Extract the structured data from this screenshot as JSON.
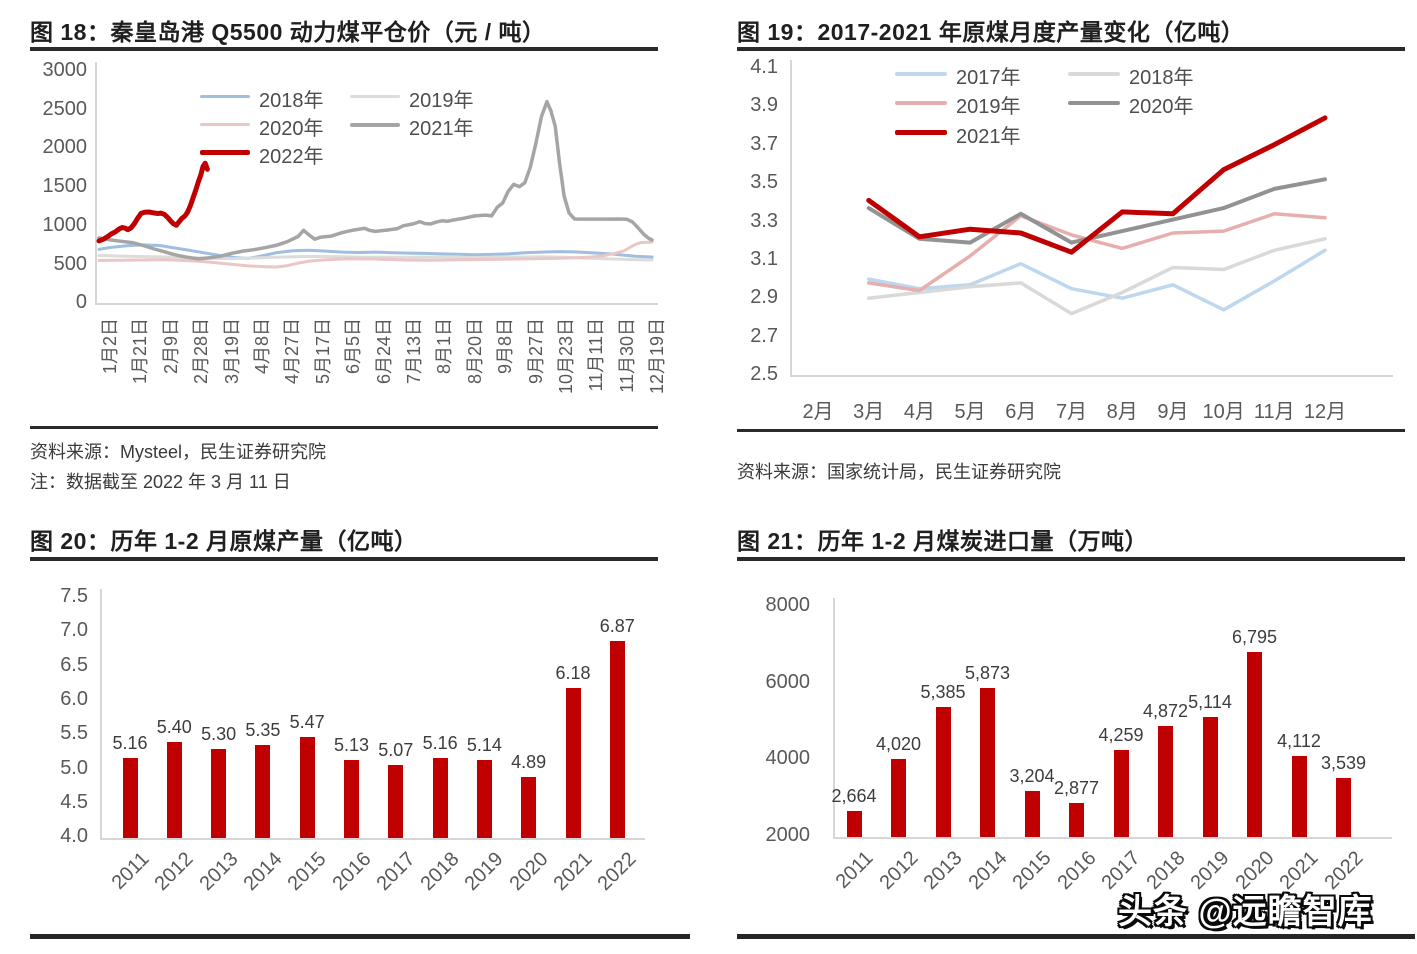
{
  "page": {
    "watermark": "头条 @远瞻智库",
    "background": "#ffffff"
  },
  "colors": {
    "bar_red": "#C00000",
    "title_text": "#1F1F1F",
    "tick_text": "#595959",
    "rule": "#2B2B2B",
    "axis_line": "#D6D6D6"
  },
  "chart_data": [
    {
      "id": "fig18",
      "type": "line",
      "title": "图 18：秦皇岛港 Q5500 动力煤平仓价（元 / 吨）",
      "source": "资料来源：Mysteel，民生证券研究院",
      "note": "注：数据截至 2022 年 3 月 11 日",
      "ylim": [
        0,
        3000
      ],
      "yticks": [
        "3000",
        "2500",
        "2000",
        "1500",
        "1000",
        "500",
        "0"
      ],
      "xticklabels": [
        "1月2日",
        "1月21日",
        "2月9日",
        "2月28日",
        "3月19日",
        "4月8日",
        "4月27日",
        "5月17日",
        "6月5日",
        "6月24日",
        "7月13日",
        "8月1日",
        "8月20日",
        "9月8日",
        "9月27日",
        "10月23日",
        "11月11日",
        "11月30日",
        "12月19日"
      ],
      "legend_rows": [
        [
          "2018年",
          "2019年"
        ],
        [
          "2020年",
          "2021年"
        ],
        [
          "2022年"
        ]
      ],
      "series": [
        {
          "name": "2018年",
          "color": "#9FBEE0",
          "width": 3,
          "points": [
            [
              0,
              690
            ],
            [
              2,
              714
            ],
            [
              5,
              736
            ],
            [
              8,
              748
            ],
            [
              11,
              740
            ],
            [
              13,
              716
            ],
            [
              16,
              682
            ],
            [
              19,
              646
            ],
            [
              22,
              610
            ],
            [
              25,
              582
            ],
            [
              27,
              574
            ],
            [
              29,
              600
            ],
            [
              32,
              646
            ],
            [
              35,
              672
            ],
            [
              38,
              680
            ],
            [
              41,
              668
            ],
            [
              44,
              656
            ],
            [
              47,
              650
            ],
            [
              50,
              656
            ],
            [
              53,
              648
            ],
            [
              56,
              642
            ],
            [
              59,
              638
            ],
            [
              62,
              632
            ],
            [
              65,
              628
            ],
            [
              68,
              622
            ],
            [
              71,
              626
            ],
            [
              74,
              632
            ],
            [
              77,
              646
            ],
            [
              80,
              656
            ],
            [
              83,
              662
            ],
            [
              86,
              658
            ],
            [
              89,
              648
            ],
            [
              91,
              638
            ],
            [
              93,
              630
            ],
            [
              95,
              616
            ],
            [
              97,
              602
            ],
            [
              100,
              592
            ]
          ]
        },
        {
          "name": "2019年",
          "color": "#DCDCDC",
          "width": 3,
          "points": [
            [
              0,
              612
            ],
            [
              4,
              604
            ],
            [
              8,
              598
            ],
            [
              12,
              592
            ],
            [
              16,
              584
            ],
            [
              20,
              577
            ],
            [
              24,
              572
            ],
            [
              28,
              580
            ],
            [
              32,
              590
            ],
            [
              36,
              597
            ],
            [
              40,
              600
            ],
            [
              44,
              596
            ],
            [
              48,
              590
            ],
            [
              52,
              588
            ],
            [
              56,
              590
            ],
            [
              60,
              592
            ],
            [
              64,
              588
            ],
            [
              68,
              585
            ],
            [
              72,
              588
            ],
            [
              76,
              592
            ],
            [
              80,
              596
            ],
            [
              84,
              590
            ],
            [
              88,
              578
            ],
            [
              92,
              568
            ],
            [
              96,
              560
            ],
            [
              100,
              554
            ]
          ]
        },
        {
          "name": "2020年",
          "color": "#EAC6C5",
          "width": 3,
          "points": [
            [
              0,
              548
            ],
            [
              4,
              551
            ],
            [
              8,
              554
            ],
            [
              12,
              557
            ],
            [
              15,
              549
            ],
            [
              18,
              538
            ],
            [
              21,
              520
            ],
            [
              24,
              497
            ],
            [
              27,
              478
            ],
            [
              30,
              468
            ],
            [
              32,
              464
            ],
            [
              34,
              480
            ],
            [
              36,
              512
            ],
            [
              38,
              540
            ],
            [
              41,
              556
            ],
            [
              44,
              566
            ],
            [
              47,
              571
            ],
            [
              50,
              566
            ],
            [
              53,
              559
            ],
            [
              56,
              553
            ],
            [
              59,
              550
            ],
            [
              62,
              553
            ],
            [
              65,
              556
            ],
            [
              68,
              559
            ],
            [
              71,
              562
            ],
            [
              74,
              565
            ],
            [
              77,
              568
            ],
            [
              80,
              572
            ],
            [
              83,
              576
            ],
            [
              85,
              580
            ],
            [
              87,
              585
            ],
            [
              89,
              592
            ],
            [
              91,
              606
            ],
            [
              93,
              634
            ],
            [
              95,
              674
            ],
            [
              96,
              714
            ],
            [
              97,
              754
            ],
            [
              98,
              778
            ],
            [
              100,
              786
            ]
          ]
        },
        {
          "name": "2021年",
          "color": "#A5A5A5",
          "width": 3.5,
          "points": [
            [
              0,
              838
            ],
            [
              2,
              812
            ],
            [
              4,
              795
            ],
            [
              6,
              778
            ],
            [
              8,
              740
            ],
            [
              10,
              695
            ],
            [
              12,
              655
            ],
            [
              14,
              615
            ],
            [
              16,
              588
            ],
            [
              18,
              568
            ],
            [
              20,
              582
            ],
            [
              22,
              602
            ],
            [
              24,
              640
            ],
            [
              26,
              668
            ],
            [
              28,
              686
            ],
            [
              30,
              712
            ],
            [
              32,
              742
            ],
            [
              34,
              788
            ],
            [
              36,
              858
            ],
            [
              37,
              936
            ],
            [
              38,
              876
            ],
            [
              39,
              822
            ],
            [
              40,
              846
            ],
            [
              42,
              862
            ],
            [
              44,
              906
            ],
            [
              46,
              938
            ],
            [
              48,
              962
            ],
            [
              49,
              934
            ],
            [
              50,
              922
            ],
            [
              52,
              938
            ],
            [
              54,
              958
            ],
            [
              55,
              994
            ],
            [
              57,
              1022
            ],
            [
              58,
              1048
            ],
            [
              59,
              1022
            ],
            [
              60,
              1018
            ],
            [
              61,
              1042
            ],
            [
              62,
              1058
            ],
            [
              63,
              1052
            ],
            [
              64,
              1068
            ],
            [
              66,
              1092
            ],
            [
              68,
              1122
            ],
            [
              70,
              1132
            ],
            [
              71,
              1122
            ],
            [
              72,
              1232
            ],
            [
              73,
              1288
            ],
            [
              74,
              1438
            ],
            [
              75,
              1528
            ],
            [
              76,
              1498
            ],
            [
              77,
              1548
            ],
            [
              78,
              1748
            ],
            [
              79,
              2058
            ],
            [
              80,
              2398
            ],
            [
              81,
              2592
            ],
            [
              81.7,
              2478
            ],
            [
              82.5,
              2278
            ],
            [
              83.3,
              1798
            ],
            [
              84.1,
              1378
            ],
            [
              85,
              1158
            ],
            [
              86,
              1082
            ],
            [
              88,
              1080
            ],
            [
              90,
              1080
            ],
            [
              92,
              1080
            ],
            [
              94,
              1082
            ],
            [
              95.5,
              1078
            ],
            [
              96.5,
              1042
            ],
            [
              97.5,
              966
            ],
            [
              98.5,
              886
            ],
            [
              99.3,
              838
            ],
            [
              100,
              812
            ]
          ]
        },
        {
          "name": "2022年",
          "color": "#C00000",
          "width": 5,
          "points": [
            [
              0,
              800
            ],
            [
              0.8,
              822
            ],
            [
              1.5,
              852
            ],
            [
              2.2,
              888
            ],
            [
              3,
              918
            ],
            [
              3.6,
              952
            ],
            [
              4.2,
              972
            ],
            [
              4.8,
              962
            ],
            [
              5.2,
              944
            ],
            [
              5.8,
              968
            ],
            [
              6.4,
              1022
            ],
            [
              7,
              1092
            ],
            [
              7.6,
              1152
            ],
            [
              8.2,
              1168
            ],
            [
              9,
              1172
            ],
            [
              9.8,
              1162
            ],
            [
              10.6,
              1152
            ],
            [
              11.2,
              1158
            ],
            [
              11.8,
              1142
            ],
            [
              12.4,
              1102
            ],
            [
              13,
              1052
            ],
            [
              13.5,
              1018
            ],
            [
              14,
              1002
            ],
            [
              14.5,
              1048
            ],
            [
              15,
              1092
            ],
            [
              15.5,
              1118
            ],
            [
              16,
              1168
            ],
            [
              16.5,
              1248
            ],
            [
              17,
              1352
            ],
            [
              17.5,
              1456
            ],
            [
              18,
              1566
            ],
            [
              18.4,
              1648
            ],
            [
              18.8,
              1758
            ],
            [
              19.2,
              1800
            ],
            [
              19.6,
              1722
            ]
          ]
        }
      ]
    },
    {
      "id": "fig19",
      "type": "line",
      "title": "图 19：2017-2021 年原煤月度产量变化（亿吨）",
      "source": "资料来源：国家统计局，民生证券研究院",
      "ylim": [
        2.5,
        4.1
      ],
      "yticks": [
        "4.1",
        "3.9",
        "3.7",
        "3.5",
        "3.3",
        "3.1",
        "2.9",
        "2.7",
        "2.5"
      ],
      "categories": [
        "2月",
        "3月",
        "4月",
        "5月",
        "6月",
        "7月",
        "8月",
        "9月",
        "10月",
        "11月",
        "12月"
      ],
      "legend_rows": [
        [
          "2017年",
          "2018年"
        ],
        [
          "2019年",
          "2020年"
        ],
        [
          "2021年"
        ]
      ],
      "series": [
        {
          "name": "2017年",
          "color": "#BDD7EE",
          "width": 3.5,
          "values": [
            null,
            3.0,
            2.95,
            2.97,
            3.08,
            2.95,
            2.9,
            2.97,
            2.84,
            2.99,
            3.15
          ]
        },
        {
          "name": "2018年",
          "color": "#D9D9D9",
          "width": 3.5,
          "values": [
            null,
            2.9,
            2.93,
            2.96,
            2.98,
            2.82,
            2.93,
            3.06,
            3.05,
            3.15,
            3.21
          ]
        },
        {
          "name": "2019年",
          "color": "#E6AFAE",
          "width": 3.5,
          "values": [
            null,
            2.98,
            2.94,
            3.12,
            3.33,
            3.23,
            3.16,
            3.24,
            3.25,
            3.34,
            3.32
          ]
        },
        {
          "name": "2020年",
          "color": "#929292",
          "width": 4,
          "values": [
            null,
            3.37,
            3.21,
            3.19,
            3.34,
            3.19,
            3.25,
            3.31,
            3.37,
            3.47,
            3.52
          ]
        },
        {
          "name": "2021年",
          "color": "#C00000",
          "width": 5,
          "values": [
            null,
            3.41,
            3.22,
            3.26,
            3.24,
            3.14,
            3.35,
            3.34,
            3.57,
            3.7,
            3.84
          ]
        }
      ]
    },
    {
      "id": "fig20",
      "type": "bar",
      "title": "图 20：历年 1-2 月原煤产量（亿吨）",
      "ylim": [
        4.0,
        7.5
      ],
      "yticks": [
        "7.5",
        "7.0",
        "6.5",
        "6.0",
        "5.5",
        "5.0",
        "4.5",
        "4.0"
      ],
      "categories": [
        "2011",
        "2012",
        "2013",
        "2014",
        "2015",
        "2016",
        "2017",
        "2018",
        "2019",
        "2020",
        "2021",
        "2022"
      ],
      "values": [
        5.16,
        5.4,
        5.3,
        5.35,
        5.47,
        5.13,
        5.07,
        5.16,
        5.14,
        4.89,
        6.18,
        6.87
      ],
      "value_labels": [
        "5.16",
        "5.40",
        "5.30",
        "5.35",
        "5.47",
        "5.13",
        "5.07",
        "5.16",
        "5.14",
        "4.89",
        "6.18",
        "6.87"
      ],
      "bar_color": "#C00000"
    },
    {
      "id": "fig21",
      "type": "bar",
      "title": "图 21：历年 1-2 月煤炭进口量（万吨）",
      "ylim": [
        2000,
        8000
      ],
      "yticks": [
        "8000",
        "6000",
        "4000",
        "2000"
      ],
      "categories": [
        "2011",
        "2012",
        "2013",
        "2014",
        "2015",
        "2016",
        "2017",
        "2018",
        "2019",
        "2020",
        "2021",
        "2022"
      ],
      "values": [
        2664,
        4020,
        5385,
        5873,
        3204,
        2877,
        4259,
        4872,
        5114,
        6795,
        4112,
        3539
      ],
      "value_labels": [
        "2,664",
        "4,020",
        "5,385",
        "5,873",
        "3,204",
        "2,877",
        "4,259",
        "4,872",
        "5,114",
        "6,795",
        "4,112",
        "3,539"
      ],
      "bar_color": "#C00000"
    }
  ]
}
